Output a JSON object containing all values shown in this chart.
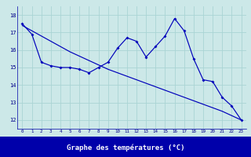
{
  "xlabel": "Graphe des températures (°C)",
  "bg_color": "#cce8e8",
  "grid_color": "#aad4d4",
  "line_color": "#0000bb",
  "xlabel_bg": "#0000aa",
  "xlabel_fg": "#ffffff",
  "hours": [
    0,
    1,
    2,
    3,
    4,
    5,
    6,
    7,
    8,
    9,
    10,
    11,
    12,
    13,
    14,
    15,
    16,
    17,
    18,
    19,
    20,
    21,
    22,
    23
  ],
  "temps": [
    17.5,
    16.9,
    15.3,
    15.1,
    15.0,
    15.0,
    14.9,
    14.7,
    15.0,
    15.3,
    16.1,
    16.7,
    16.5,
    15.6,
    16.2,
    16.8,
    17.8,
    17.1,
    15.5,
    14.3,
    14.2,
    13.3,
    12.8,
    12.0
  ],
  "trend": [
    17.4,
    17.1,
    16.8,
    16.5,
    16.2,
    15.9,
    15.65,
    15.4,
    15.15,
    14.9,
    14.7,
    14.5,
    14.3,
    14.1,
    13.9,
    13.7,
    13.5,
    13.3,
    13.1,
    12.9,
    12.7,
    12.5,
    12.25,
    12.0
  ],
  "ylim": [
    11.5,
    18.5
  ],
  "yticks": [
    12,
    13,
    14,
    15,
    16,
    17,
    18
  ]
}
